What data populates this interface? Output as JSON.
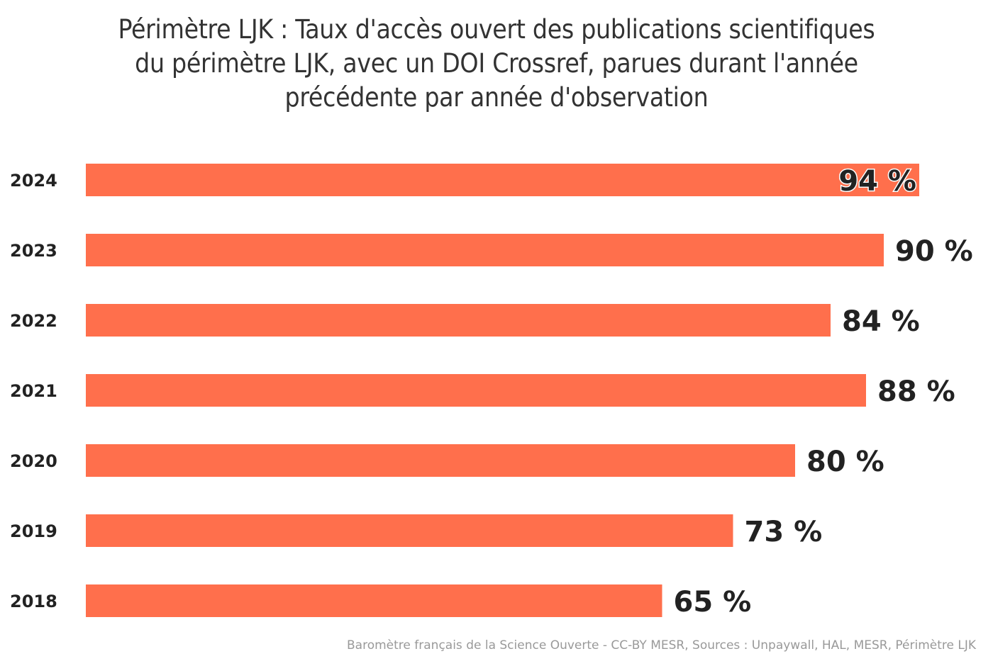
{
  "chart_data": {
    "type": "bar",
    "orientation": "horizontal",
    "title": "Périmètre LJK : Taux d'accès ouvert des publications scientifiques du périmètre LJK, avec un DOI Crossref, parues durant l'année précédente par année d'observation",
    "title_lines": [
      "Périmètre LJK : Taux d'accès ouvert des publications scientifiques",
      "du périmètre LJK, avec un DOI Crossref, parues durant l'année",
      "précédente par année d'observation"
    ],
    "categories": [
      "2024",
      "2023",
      "2022",
      "2021",
      "2020",
      "2019",
      "2018"
    ],
    "values": [
      94,
      90,
      84,
      88,
      80,
      73,
      65
    ],
    "data_labels": [
      "94 %",
      "90 %",
      "84 %",
      "88 %",
      "80 %",
      "73 %",
      "65 %"
    ],
    "xlabel": "",
    "ylabel": "",
    "xlim": [
      0,
      100
    ],
    "grid": false,
    "legend": "none",
    "bar_color": "#FF6F4C",
    "credits": "Baromètre français de la Science Ouverte - CC-BY MESR, Sources : Unpaywall, HAL, MESR, Périmètre LJK"
  }
}
